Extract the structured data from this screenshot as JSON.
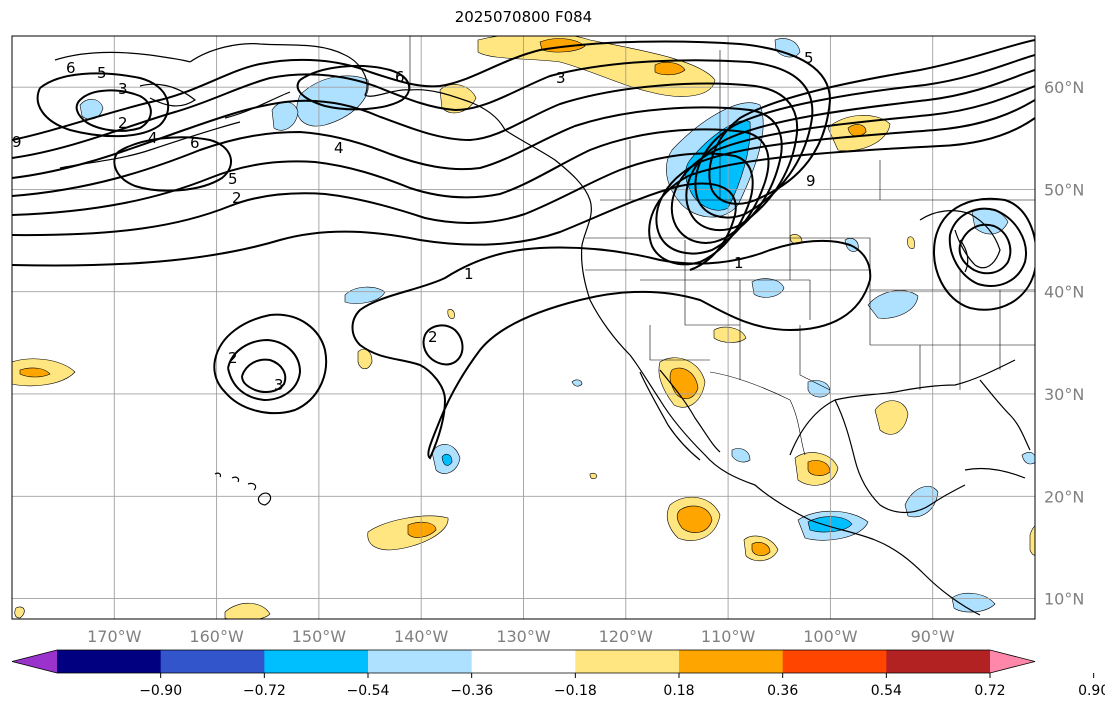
{
  "title": "2025070800 F084",
  "map": {
    "projection": "PlateCarree",
    "lon_range": [
      -180,
      -80
    ],
    "lat_range": [
      8,
      65
    ],
    "lon_ticks": [
      "170°W",
      "160°W",
      "150°W",
      "140°W",
      "130°W",
      "120°W",
      "110°W",
      "100°W",
      "90°W"
    ],
    "lon_tick_values": [
      -170,
      -160,
      -150,
      -140,
      -130,
      -120,
      -110,
      -100,
      -90
    ],
    "lat_ticks": [
      "60°N",
      "50°N",
      "40°N",
      "30°N",
      "20°N",
      "10°N"
    ],
    "lat_tick_values": [
      60,
      50,
      40,
      30,
      20,
      10
    ],
    "grid": true,
    "contour_color": "#000000",
    "contour_labels": [
      "6",
      "5",
      "3",
      "2",
      "9",
      "4",
      "6",
      "5",
      "2",
      "4",
      "6",
      "3",
      "5",
      "1",
      "9",
      "1",
      "2",
      "2",
      "3"
    ]
  },
  "colorbar": {
    "extend": "both",
    "tick_labels": [
      "−0.90",
      "−0.72",
      "−0.54",
      "−0.36",
      "−0.18",
      "0.18",
      "0.36",
      "0.54",
      "0.72",
      "0.90"
    ],
    "colors": [
      "#9933cc",
      "#000080",
      "#3355cc",
      "#00bfff",
      "#aee0ff",
      "#ffffff",
      "#ffe680",
      "#ffa500",
      "#ff4500",
      "#b22222",
      "#ff88aa"
    ]
  }
}
